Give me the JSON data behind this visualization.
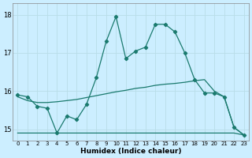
{
  "xlabel": "Humidex (Indice chaleur)",
  "x": [
    0,
    1,
    2,
    3,
    4,
    5,
    6,
    7,
    8,
    9,
    10,
    11,
    12,
    13,
    14,
    15,
    16,
    17,
    18,
    19,
    20,
    21,
    22,
    23
  ],
  "y_main": [
    15.9,
    15.85,
    15.6,
    15.55,
    14.9,
    15.35,
    15.25,
    15.65,
    16.35,
    17.3,
    17.95,
    16.85,
    17.05,
    17.15,
    17.75,
    17.75,
    17.55,
    17.0,
    16.3,
    15.95,
    15.95,
    15.85,
    15.05,
    14.85
  ],
  "y_trend": [
    15.85,
    15.75,
    15.7,
    15.7,
    15.72,
    15.75,
    15.78,
    15.83,
    15.88,
    15.93,
    15.98,
    16.02,
    16.07,
    16.1,
    16.15,
    16.18,
    16.2,
    16.23,
    16.27,
    16.3,
    16.0,
    15.85,
    15.05,
    14.85
  ],
  "y_flat": [
    14.9,
    14.9,
    14.9,
    14.9,
    14.9,
    14.9,
    14.9,
    14.9,
    14.9,
    14.9,
    14.9,
    14.9,
    14.9,
    14.9,
    14.9,
    14.9,
    14.9,
    14.9,
    14.9,
    14.9,
    14.9,
    14.9,
    14.9,
    14.85
  ],
  "line_color": "#1a7a6e",
  "bg_color": "#cceeff",
  "grid_color": "#b8dde8",
  "ylim": [
    14.7,
    18.3
  ],
  "yticks": [
    15,
    16,
    17,
    18
  ]
}
